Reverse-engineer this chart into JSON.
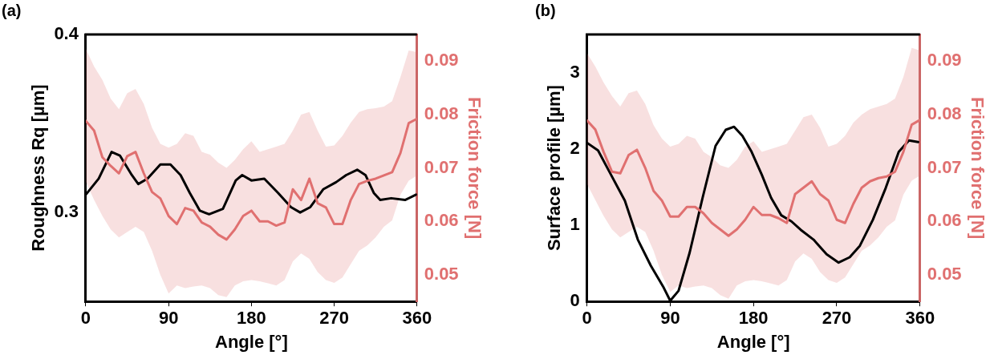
{
  "chart_data": [
    {
      "type": "line",
      "title": "(a)",
      "xlabel": "Angle [°]",
      "ylabel": "Roughness Rq [µm]",
      "y2label": "Friction force [N]",
      "xlim": [
        0,
        360
      ],
      "xticks": [
        0,
        90,
        180,
        270,
        360
      ],
      "ylim": [
        0.25,
        0.4
      ],
      "yticks": [
        0.3,
        0.4
      ],
      "y2lim": [
        0.045,
        0.095
      ],
      "y2ticks": [
        0.05,
        0.06,
        0.07,
        0.08,
        0.09
      ],
      "grid": false,
      "legend": false,
      "marker": "none",
      "line_style": "solid",
      "series": [
        {
          "color": "#000000",
          "x": [
            0,
            14,
            28,
            37,
            50,
            57,
            67,
            81,
            92,
            103,
            113,
            124,
            134,
            149,
            163,
            170,
            180,
            194,
            209,
            223,
            233,
            244,
            258,
            272,
            283,
            295,
            304,
            313,
            320,
            332,
            347,
            359
          ],
          "values": [
            0.31,
            0.319,
            0.334,
            0.332,
            0.321,
            0.316,
            0.319,
            0.327,
            0.327,
            0.321,
            0.311,
            0.301,
            0.299,
            0.302,
            0.318,
            0.321,
            0.318,
            0.319,
            0.311,
            0.303,
            0.3,
            0.303,
            0.313,
            0.317,
            0.321,
            0.324,
            0.321,
            0.311,
            0.307,
            0.308,
            0.307,
            0.31
          ]
        },
        {
          "color": "#e07070",
          "axis": "y2",
          "x": [
            0,
            9,
            18,
            27,
            36,
            45,
            54,
            63,
            72,
            81,
            90,
            99,
            108,
            117,
            126,
            135,
            144,
            153,
            162,
            171,
            180,
            189,
            198,
            207,
            216,
            225,
            234,
            243,
            252,
            261,
            270,
            279,
            288,
            297,
            306,
            315,
            324,
            333,
            342,
            351,
            360
          ],
          "values": [
            0.0788,
            0.077,
            0.072,
            0.0704,
            0.069,
            0.0722,
            0.073,
            0.069,
            0.0655,
            0.0643,
            0.061,
            0.0595,
            0.0625,
            0.062,
            0.0598,
            0.059,
            0.0575,
            0.0566,
            0.0585,
            0.061,
            0.062,
            0.06,
            0.06,
            0.0592,
            0.0598,
            0.066,
            0.064,
            0.068,
            0.0634,
            0.0626,
            0.0595,
            0.0595,
            0.064,
            0.067,
            0.0676,
            0.068,
            0.0686,
            0.0692,
            0.0728,
            0.0784,
            0.0792
          ],
          "lower": [
            0.0674,
            0.064,
            0.061,
            0.0585,
            0.057,
            0.058,
            0.059,
            0.058,
            0.0545,
            0.05,
            0.0465,
            0.048,
            0.0475,
            0.0478,
            0.048,
            0.0475,
            0.0462,
            0.0458,
            0.048,
            0.0488,
            0.049,
            0.0488,
            0.0484,
            0.048,
            0.049,
            0.0525,
            0.054,
            0.053,
            0.0505,
            0.049,
            0.0485,
            0.0495,
            0.052,
            0.0545,
            0.0555,
            0.057,
            0.059,
            0.0602,
            0.065,
            0.0676,
            0.0686
          ],
          "upper": [
            0.0923,
            0.089,
            0.0865,
            0.083,
            0.081,
            0.084,
            0.0848,
            0.082,
            0.0775,
            0.0745,
            0.0738,
            0.0745,
            0.0765,
            0.076,
            0.073,
            0.0725,
            0.071,
            0.07,
            0.0715,
            0.0735,
            0.075,
            0.073,
            0.0735,
            0.074,
            0.0745,
            0.077,
            0.08,
            0.0805,
            0.077,
            0.074,
            0.0742,
            0.076,
            0.0785,
            0.0805,
            0.081,
            0.0812,
            0.0815,
            0.0825,
            0.087,
            0.092,
            0.0917
          ]
        }
      ]
    },
    {
      "type": "line",
      "title": "(b)",
      "xlabel": "Angle [°]",
      "ylabel": "Surface profile [µm]",
      "y2label": "Friction force [N]",
      "xlim": [
        0,
        360
      ],
      "xticks": [
        0,
        90,
        180,
        270,
        360
      ],
      "ylim": [
        0,
        3.5
      ],
      "yticks": [
        0,
        1,
        2,
        3
      ],
      "y2lim": [
        0.045,
        0.095
      ],
      "y2ticks": [
        0.05,
        0.06,
        0.07,
        0.08,
        0.09
      ],
      "grid": false,
      "legend": false,
      "marker": "none",
      "line_style": "solid",
      "series": [
        {
          "color": "#000000",
          "x": [
            0,
            12,
            26,
            41,
            55,
            69,
            83,
            90,
            99,
            111,
            125,
            139,
            150,
            159,
            168,
            178,
            189,
            199,
            210,
            221,
            231,
            245,
            259,
            272,
            284,
            295,
            309,
            323,
            337,
            348,
            358
          ],
          "values": [
            2.08,
            1.98,
            1.66,
            1.32,
            0.81,
            0.47,
            0.18,
            0.01,
            0.14,
            0.64,
            1.36,
            2.04,
            2.25,
            2.29,
            2.17,
            1.96,
            1.66,
            1.36,
            1.13,
            1.05,
            0.94,
            0.81,
            0.62,
            0.51,
            0.58,
            0.73,
            1.07,
            1.49,
            1.96,
            2.11,
            2.09
          ]
        },
        {
          "color": "#e07070",
          "axis": "y2",
          "x": [
            0,
            9,
            18,
            27,
            36,
            45,
            54,
            63,
            72,
            81,
            90,
            99,
            108,
            117,
            126,
            135,
            144,
            153,
            162,
            171,
            180,
            189,
            198,
            207,
            216,
            225,
            234,
            243,
            252,
            261,
            270,
            279,
            288,
            297,
            306,
            315,
            324,
            333,
            342,
            351,
            360
          ],
          "values": [
            0.0789,
            0.0772,
            0.073,
            0.0693,
            0.069,
            0.0724,
            0.0734,
            0.07,
            0.0657,
            0.0639,
            0.0609,
            0.0609,
            0.0627,
            0.0627,
            0.0615,
            0.0597,
            0.0585,
            0.0573,
            0.0585,
            0.0603,
            0.0627,
            0.0612,
            0.0612,
            0.0606,
            0.0597,
            0.0651,
            0.0663,
            0.0675,
            0.0651,
            0.0639,
            0.0603,
            0.0597,
            0.0633,
            0.0663,
            0.0675,
            0.0681,
            0.0684,
            0.0693,
            0.073,
            0.0781,
            0.079
          ],
          "lower": [
            0.067,
            0.064,
            0.061,
            0.0585,
            0.057,
            0.058,
            0.059,
            0.058,
            0.0545,
            0.05,
            0.0468,
            0.048,
            0.0475,
            0.0478,
            0.048,
            0.0475,
            0.0462,
            0.0455,
            0.048,
            0.0488,
            0.049,
            0.0488,
            0.0484,
            0.048,
            0.049,
            0.0525,
            0.054,
            0.053,
            0.0505,
            0.049,
            0.0485,
            0.0495,
            0.052,
            0.0545,
            0.0555,
            0.057,
            0.059,
            0.0602,
            0.065,
            0.0676,
            0.0686
          ],
          "upper": [
            0.0915,
            0.089,
            0.086,
            0.0835,
            0.0815,
            0.084,
            0.0845,
            0.082,
            0.078,
            0.0755,
            0.074,
            0.0745,
            0.076,
            0.0755,
            0.073,
            0.072,
            0.0705,
            0.07,
            0.0715,
            0.074,
            0.075,
            0.073,
            0.0735,
            0.074,
            0.0745,
            0.077,
            0.0795,
            0.08,
            0.0775,
            0.074,
            0.0745,
            0.076,
            0.0785,
            0.08,
            0.081,
            0.0815,
            0.082,
            0.083,
            0.087,
            0.0925,
            0.092
          ]
        }
      ]
    }
  ]
}
